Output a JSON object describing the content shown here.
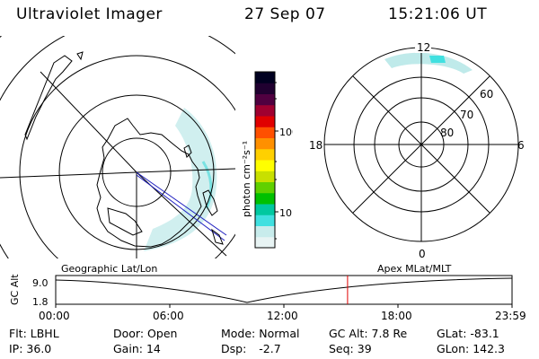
{
  "header": {
    "title": "Ultraviolet Imager",
    "date": "27 Sep 07",
    "time": "15:21:06 UT"
  },
  "colorbar": {
    "unit_label": "photon cm⁻²s⁻¹",
    "tick_100": "100",
    "tick_10": "10",
    "colors": [
      "#e8f4f4",
      "#c8ecec",
      "#40e0e0",
      "#00c8a0",
      "#00c000",
      "#60d000",
      "#c8e000",
      "#ffff00",
      "#ffd000",
      "#ff9000",
      "#ff5000",
      "#e00000",
      "#a00030",
      "#500040",
      "#200030",
      "#000020"
    ]
  },
  "polar_plot": {
    "label_12": "12",
    "label_18": "18",
    "label_6": "6",
    "label_0": "0",
    "label_60": "60",
    "label_70": "70",
    "label_80": "80"
  },
  "timeline": {
    "ylabel": "GC Alt",
    "y_max_label": "9.0",
    "y_min_label": "1.8",
    "left_caption": "Geographic Lat/Lon",
    "right_caption": "Apex MLat/MLT",
    "x_ticks": [
      "00:00",
      "06:00",
      "12:00",
      "18:00",
      "23:59"
    ],
    "current_time_hours": 15.35,
    "line_color": "#000000",
    "marker_color": "#e00000"
  },
  "footer": {
    "flt_label": "Flt:",
    "flt_value": "LBHL",
    "ip_label": "IP:",
    "ip_value": "36.0",
    "door_label": "Door:",
    "door_value": "Open",
    "gain_label": "Gain:",
    "gain_value": "14",
    "mode_label": "Mode:",
    "mode_value": "Normal",
    "dsp_label": "Dsp:",
    "dsp_value": "-2.7",
    "gcalt_label": "GC Alt:",
    "gcalt_value": "7.8 Re",
    "seq_label": "Seq:",
    "seq_value": "39",
    "glat_label": "GLat:",
    "glat_value": "-83.1",
    "glon_label": "GLon:",
    "glon_value": "142.3"
  }
}
